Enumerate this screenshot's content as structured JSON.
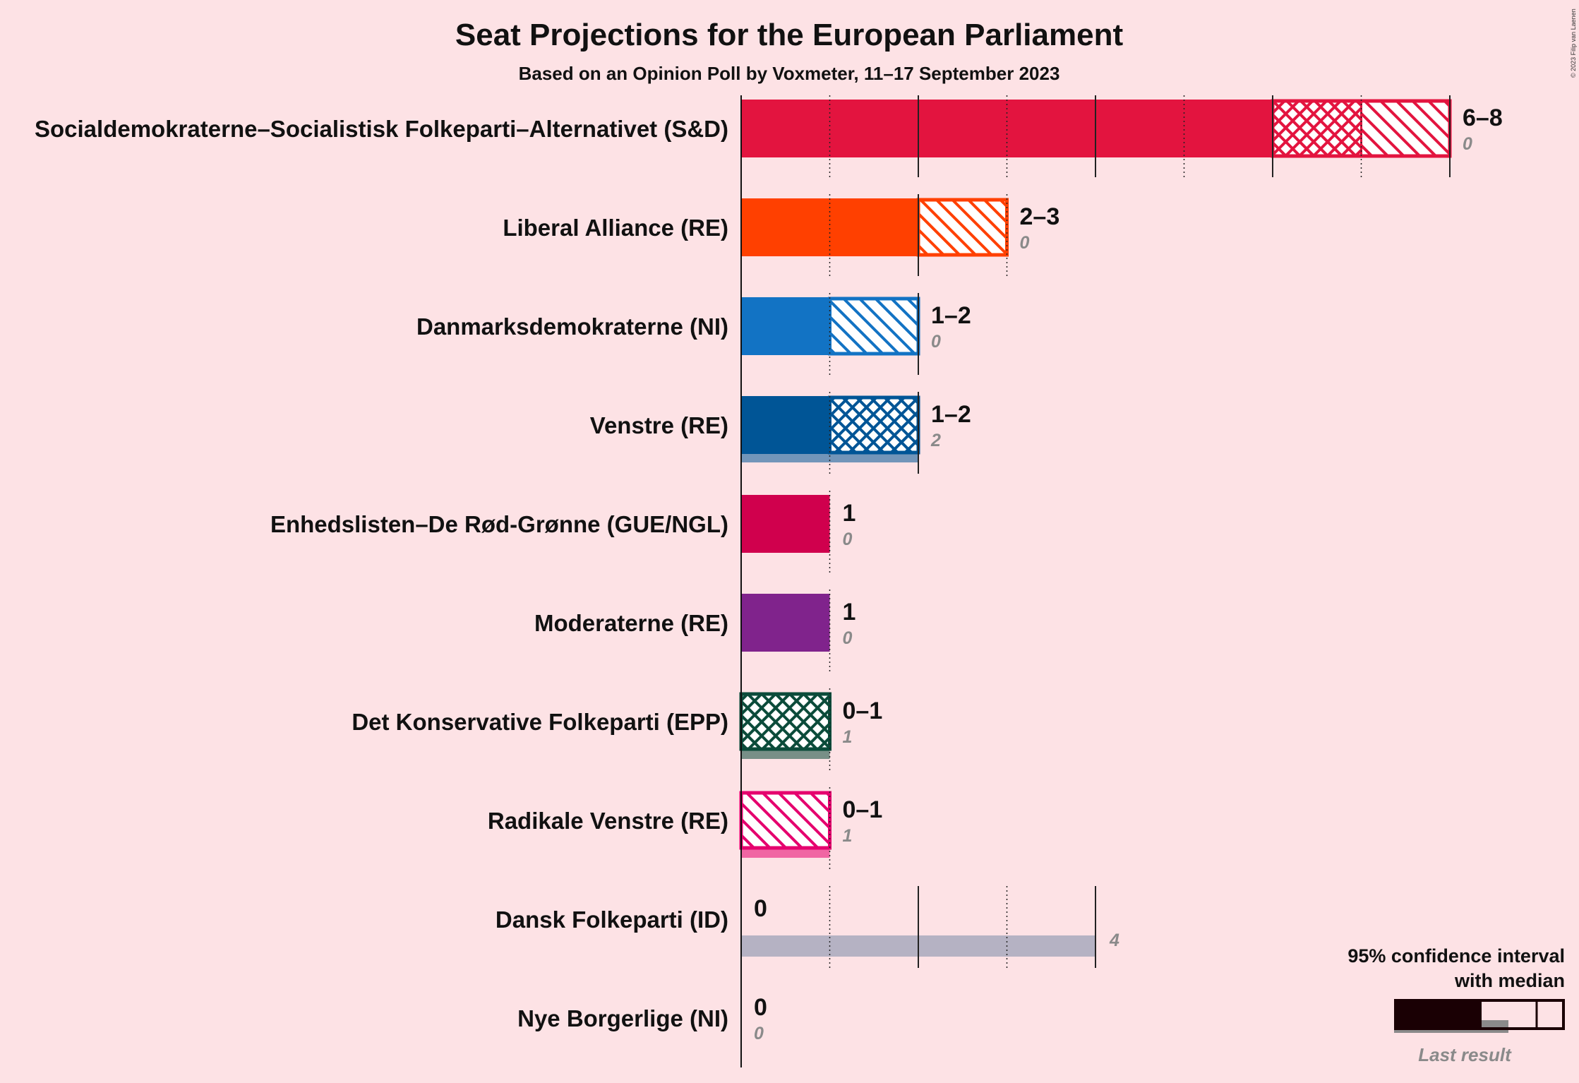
{
  "chart_data": {
    "type": "bar",
    "title": "Seat Projections for the European Parliament",
    "subtitle": "Based on an Opinion Poll by Voxmeter, 11–17 September 2023",
    "copyright": "© 2023 Filip van Laenen",
    "xlim": [
      0,
      8
    ],
    "parties": [
      {
        "name": "Socialdemokraterne–Socialistisk Folkeparti–Alternativet (S&D)",
        "color": "#e3143f",
        "low": 6,
        "median": 7,
        "high": 8,
        "range_label": "6–8",
        "last_result": 0,
        "last_label": "0"
      },
      {
        "name": "Liberal Alliance (RE)",
        "color": "#ff4000",
        "low": 2,
        "median": 2,
        "high": 3,
        "range_label": "2–3",
        "last_result": 0,
        "last_label": "0"
      },
      {
        "name": "Danmarksdemokraterne (NI)",
        "color": "#1273c4",
        "low": 1,
        "median": 1,
        "high": 2,
        "range_label": "1–2",
        "last_result": 0,
        "last_label": "0"
      },
      {
        "name": "Venstre (RE)",
        "color": "#005596",
        "low": 1,
        "median": 2,
        "high": 2,
        "range_label": "1–2",
        "last_result": 2,
        "last_label": "2"
      },
      {
        "name": "Enhedslisten–De Rød-Grønne (GUE/NGL)",
        "color": "#d0004d",
        "low": 1,
        "median": 1,
        "high": 1,
        "range_label": "1",
        "last_result": 0,
        "last_label": "0"
      },
      {
        "name": "Moderaterne (RE)",
        "color": "#80238c",
        "low": 1,
        "median": 1,
        "high": 1,
        "range_label": "1",
        "last_result": 0,
        "last_label": "0"
      },
      {
        "name": "Det Konservative Folkeparti (EPP)",
        "color": "#0b4b3a",
        "low": 0,
        "median": 1,
        "high": 1,
        "range_label": "0–1",
        "last_result": 1,
        "last_label": "1"
      },
      {
        "name": "Radikale Venstre (RE)",
        "color": "#e5006e",
        "low": 0,
        "median": 0,
        "high": 1,
        "range_label": "0–1",
        "last_result": 1,
        "last_label": "1"
      },
      {
        "name": "Dansk Folkeparti (ID)",
        "color": "#7a8aa8",
        "low": 0,
        "median": 0,
        "high": 0,
        "range_label": "0",
        "last_result": 4,
        "last_label": "4"
      },
      {
        "name": "Nye Borgerlige (NI)",
        "color": "#054b6d",
        "low": 0,
        "median": 0,
        "high": 0,
        "range_label": "0",
        "last_result": 0,
        "last_label": "0"
      }
    ],
    "legend": {
      "line1": "95% confidence interval",
      "line2": "with median",
      "last_result": "Last result"
    }
  }
}
